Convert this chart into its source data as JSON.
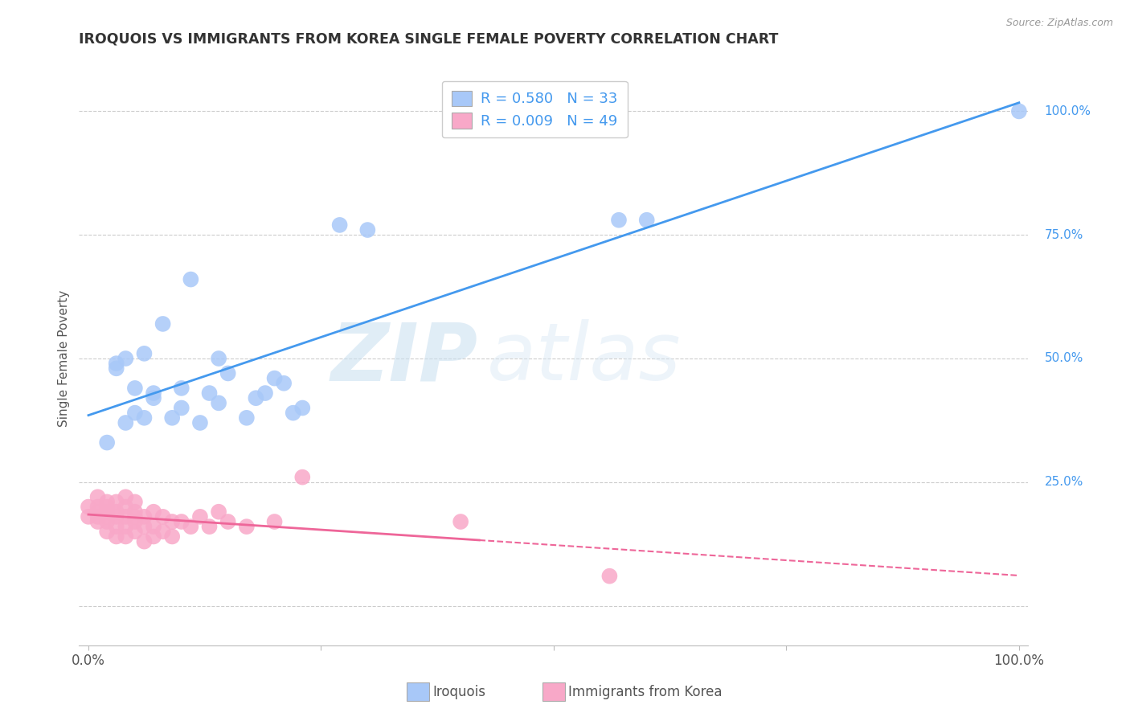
{
  "title": "IROQUOIS VS IMMIGRANTS FROM KOREA SINGLE FEMALE POVERTY CORRELATION CHART",
  "source": "Source: ZipAtlas.com",
  "ylabel": "Single Female Poverty",
  "legend_label1": "Iroquois",
  "legend_label2": "Immigrants from Korea",
  "r1": "0.580",
  "n1": "33",
  "r2": "0.009",
  "n2": "49",
  "watermark_zip": "ZIP",
  "watermark_atlas": "atlas",
  "iroquois_x": [
    0.02,
    0.03,
    0.03,
    0.04,
    0.05,
    0.05,
    0.06,
    0.07,
    0.08,
    0.1,
    0.11,
    0.13,
    0.14,
    0.15,
    0.17,
    0.19,
    0.2,
    0.21,
    0.22,
    0.3,
    0.57,
    0.6,
    1.0,
    0.06,
    0.1,
    0.14,
    0.04,
    0.07,
    0.23,
    0.12,
    0.27,
    0.09,
    0.18
  ],
  "iroquois_y": [
    0.33,
    0.49,
    0.48,
    0.37,
    0.44,
    0.39,
    0.38,
    0.43,
    0.57,
    0.4,
    0.66,
    0.43,
    0.41,
    0.47,
    0.38,
    0.43,
    0.46,
    0.45,
    0.39,
    0.76,
    0.78,
    0.78,
    1.0,
    0.51,
    0.44,
    0.5,
    0.5,
    0.42,
    0.4,
    0.37,
    0.77,
    0.38,
    0.42
  ],
  "korea_x": [
    0.0,
    0.0,
    0.01,
    0.01,
    0.01,
    0.01,
    0.01,
    0.02,
    0.02,
    0.02,
    0.02,
    0.02,
    0.02,
    0.03,
    0.03,
    0.03,
    0.03,
    0.03,
    0.04,
    0.04,
    0.04,
    0.04,
    0.04,
    0.05,
    0.05,
    0.05,
    0.05,
    0.05,
    0.06,
    0.06,
    0.06,
    0.07,
    0.07,
    0.07,
    0.08,
    0.08,
    0.09,
    0.09,
    0.1,
    0.11,
    0.12,
    0.13,
    0.14,
    0.15,
    0.17,
    0.2,
    0.23,
    0.4,
    0.56
  ],
  "korea_y": [
    0.18,
    0.2,
    0.17,
    0.18,
    0.19,
    0.2,
    0.22,
    0.15,
    0.17,
    0.18,
    0.19,
    0.2,
    0.21,
    0.14,
    0.16,
    0.18,
    0.19,
    0.21,
    0.14,
    0.16,
    0.18,
    0.2,
    0.22,
    0.15,
    0.17,
    0.18,
    0.19,
    0.21,
    0.13,
    0.16,
    0.18,
    0.14,
    0.16,
    0.19,
    0.15,
    0.18,
    0.14,
    0.17,
    0.17,
    0.16,
    0.18,
    0.16,
    0.19,
    0.17,
    0.16,
    0.17,
    0.26,
    0.17,
    0.06
  ],
  "blue_color": "#a8c8f8",
  "pink_color": "#f8a8c8",
  "line_blue": "#4499ee",
  "line_pink": "#ee6699",
  "bg_color": "#ffffff",
  "grid_color": "#cccccc",
  "legend_text_color": "#4499ee",
  "title_color": "#333333",
  "right_axis_color": "#4499ee",
  "xmin": 0.0,
  "xmax": 1.0,
  "ymin": -0.08,
  "ymax": 1.08,
  "yticks": [
    0.0,
    0.25,
    0.5,
    0.75,
    1.0
  ],
  "ytick_labels": [
    "",
    "25.0%",
    "50.0%",
    "75.0%",
    "100.0%"
  ]
}
